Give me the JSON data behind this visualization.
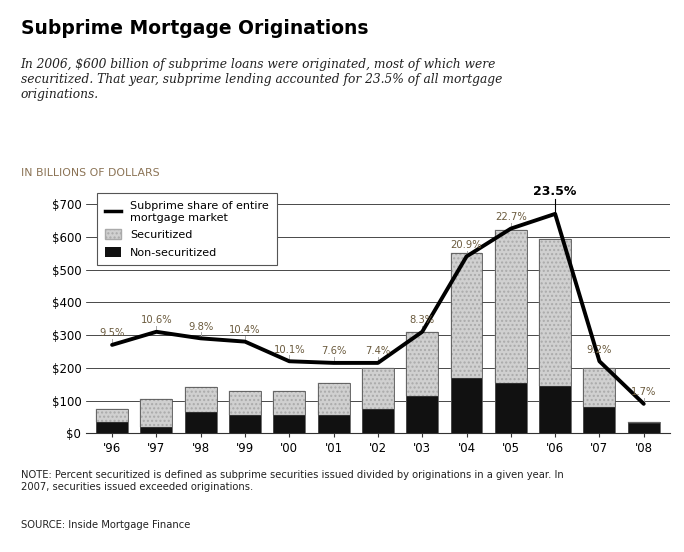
{
  "years": [
    "'96",
    "'97",
    "'98",
    "'99",
    "'00",
    "'01",
    "'02",
    "'03",
    "'04",
    "'05",
    "'06",
    "'07",
    "'08"
  ],
  "non_securitized": [
    35,
    20,
    65,
    55,
    55,
    55,
    75,
    115,
    170,
    155,
    145,
    80,
    30
  ],
  "securitized": [
    40,
    85,
    75,
    75,
    75,
    100,
    125,
    195,
    380,
    465,
    448,
    120,
    5
  ],
  "line_values": [
    270,
    310,
    290,
    280,
    220,
    215,
    215,
    310,
    540,
    625,
    670,
    220,
    90
  ],
  "percentages": [
    "9.5%",
    "10.6%",
    "9.8%",
    "10.4%",
    "10.1%",
    "7.6%",
    "7.4%",
    "8.3%",
    "20.9%",
    "22.7%",
    "23.5%",
    "9.2%",
    "1.7%"
  ],
  "title": "Subprime Mortgage Originations",
  "subtitle": "In 2006, $600 billion of subprime loans were originated, most of which were\nsecuritized. That year, subprime lending accounted for 23.5% of all mortgage\noriginations.",
  "axis_label": "IN BILLIONS OF DOLLARS",
  "note": "NOTE: Percent securitized is defined as subprime securities issued divided by originations in a given year. In\n2007, securities issued exceeded originations.",
  "source": "SOURCE: Inside Mortgage Finance",
  "yticks": [
    0,
    100,
    200,
    300,
    400,
    500,
    600,
    700
  ],
  "ylim": [
    0,
    750
  ],
  "bar_width": 0.72,
  "securitized_color": "#d0d0d0",
  "non_securitized_color": "#111111",
  "line_color": "#000000",
  "background_color": "#ffffff",
  "axis_label_color": "#8B7355",
  "pct_color": "#6B5B3E"
}
